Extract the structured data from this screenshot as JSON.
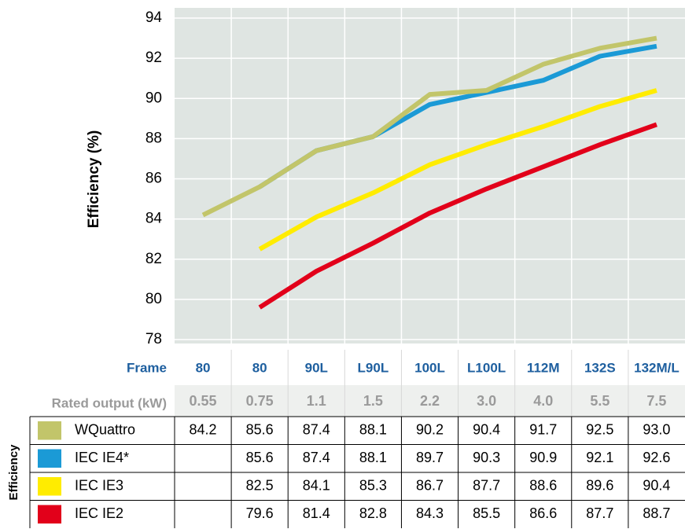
{
  "chart_data": {
    "type": "line",
    "ylabel": "Efficiency (%)",
    "ylim": [
      78,
      94
    ],
    "yticks": [
      78,
      80,
      82,
      84,
      86,
      88,
      90,
      92,
      94
    ],
    "grid": true,
    "frame_label": "Frame",
    "categories": [
      "80",
      "80",
      "90L",
      "L90L",
      "100L",
      "L100L",
      "112M",
      "132S",
      "132M/L"
    ],
    "rated_output_label": "Rated output (kW)",
    "rated_outputs": [
      "0.55",
      "0.75",
      "1.1",
      "1.5",
      "2.2",
      "3.0",
      "4.0",
      "5.5",
      "7.5"
    ],
    "table_label": "Efficiency",
    "series": [
      {
        "name": "WQuattro",
        "color": "#c2c56a",
        "values": [
          84.2,
          85.6,
          87.4,
          88.1,
          90.2,
          90.4,
          91.7,
          92.5,
          93.0
        ],
        "value_labels": [
          "84.2",
          "85.6",
          "87.4",
          "88.1",
          "90.2",
          "90.4",
          "91.7",
          "92.5",
          "93.0"
        ]
      },
      {
        "name": "IEC IE4*",
        "color": "#1b9ad6",
        "values": [
          null,
          85.6,
          87.4,
          88.1,
          89.7,
          90.3,
          90.9,
          92.1,
          92.6
        ],
        "value_labels": [
          null,
          "85.6",
          "87.4",
          "88.1",
          "89.7",
          "90.3",
          "90.9",
          "92.1",
          "92.6"
        ]
      },
      {
        "name": "IEC IE3",
        "color": "#ffec00",
        "values": [
          null,
          82.5,
          84.1,
          85.3,
          86.7,
          87.7,
          88.6,
          89.6,
          90.4
        ],
        "value_labels": [
          null,
          "82.5",
          "84.1",
          "85.3",
          "86.7",
          "87.7",
          "88.6",
          "89.6",
          "90.4"
        ]
      },
      {
        "name": "IEC IE2",
        "color": "#e2001a",
        "values": [
          null,
          79.6,
          81.4,
          82.8,
          84.3,
          85.5,
          86.6,
          87.7,
          88.7
        ],
        "value_labels": [
          null,
          "79.6",
          "81.4",
          "82.8",
          "84.3",
          "85.5",
          "86.6",
          "87.7",
          "88.7"
        ]
      }
    ]
  }
}
